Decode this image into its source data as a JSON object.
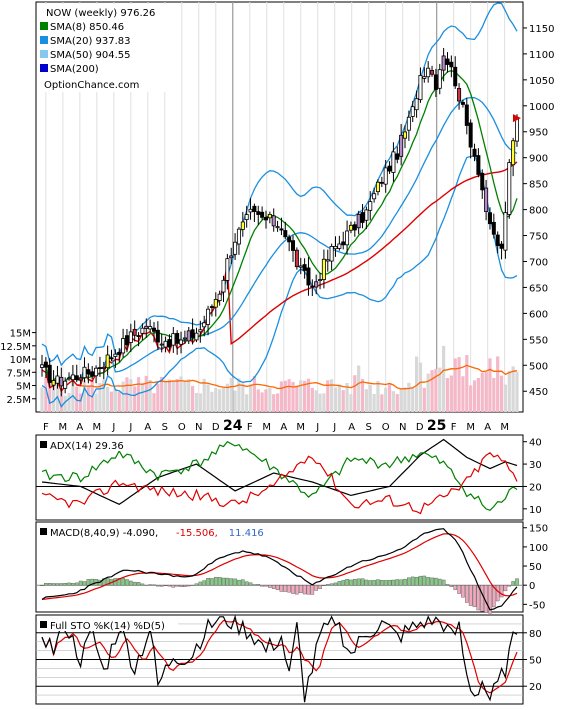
{
  "chart_data": [
    {
      "type": "candlestick",
      "title": "NOW (weekly) 976.26",
      "source_label": "OptionChance.com",
      "legend": [
        {
          "label": "SMA(8) 850.46",
          "color": "#008000"
        },
        {
          "label": "SMA(20) 937.83",
          "color": "#1a8fe0"
        },
        {
          "label": "SMA(50) 904.55",
          "color": "#87c8f0"
        },
        {
          "label": "SMA(200)",
          "color": "#0000cc"
        }
      ],
      "legend_placement": "top-left",
      "ylim": [
        410,
        1200
      ],
      "y_ticks": [
        450,
        500,
        550,
        600,
        650,
        700,
        750,
        800,
        850,
        900,
        950,
        1000,
        1050,
        1100,
        1150
      ],
      "x_tick_labels": [
        "F",
        "M",
        "A",
        "M",
        "J",
        "J",
        "A",
        "S",
        "O",
        "N",
        "D",
        "24",
        "F",
        "M",
        "A",
        "M",
        "J",
        "J",
        "A",
        "S",
        "O",
        "N",
        "D",
        "25",
        "F",
        "M",
        "A",
        "M"
      ],
      "year_markers": [
        "24",
        "25"
      ],
      "last_price": 976.26,
      "price_anchors": {
        "weeks": [
          0,
          4,
          8,
          13,
          18,
          23,
          27,
          31,
          36,
          41,
          46,
          48,
          50,
          54,
          58,
          62,
          67,
          70,
          75,
          80,
          84,
          88,
          92,
          96,
          98,
          100,
          102,
          104,
          107,
          110,
          113,
          116,
          119,
          121,
          123
        ],
        "closes": [
          490,
          468,
          478,
          488,
          520,
          555,
          575,
          550,
          545,
          570,
          645,
          700,
          745,
          790,
          780,
          770,
          680,
          650,
          720,
          760,
          795,
          860,
          910,
          990,
          1060,
          1080,
          1045,
          1105,
          1050,
          960,
          880,
          760,
          720,
          880,
          976
        ]
      },
      "volume": {
        "y_ticks": [
          "15M",
          "12.5M",
          "10M",
          "7.5M",
          "5M",
          "2.5M"
        ],
        "y_tick_values": [
          15,
          12.5,
          10,
          7.5,
          5,
          2.5
        ],
        "ylim": [
          0,
          17
        ],
        "avg_line_color": "#ff6600"
      }
    },
    {
      "type": "line",
      "title": "ADX(14) 29.36",
      "ylim": [
        5,
        43
      ],
      "y_ticks": [
        10,
        20,
        30,
        40
      ],
      "reference_line": 20,
      "series": [
        {
          "color": "#000000",
          "anchors_w": [
            0,
            10,
            20,
            30,
            40,
            50,
            60,
            70,
            80,
            90,
            98,
            104,
            110,
            116,
            120,
            123
          ],
          "anchors_v": [
            22,
            20,
            12,
            24,
            30,
            18,
            26,
            22,
            16,
            20,
            34,
            41,
            33,
            28,
            31,
            29.36
          ]
        },
        {
          "color": "#008000",
          "anchors_w": [
            0,
            10,
            20,
            30,
            40,
            50,
            60,
            70,
            80,
            90,
            98,
            104,
            110,
            116,
            120,
            123
          ],
          "anchors_v": [
            25,
            24,
            35,
            25,
            30,
            40,
            28,
            15,
            32,
            30,
            35,
            30,
            18,
            9,
            15,
            20
          ]
        },
        {
          "color": "#dd0000",
          "anchors_w": [
            0,
            10,
            20,
            30,
            40,
            50,
            60,
            70,
            80,
            90,
            98,
            104,
            110,
            116,
            120,
            123
          ],
          "anchors_v": [
            15,
            12,
            22,
            18,
            16,
            12,
            20,
            35,
            12,
            14,
            10,
            15,
            22,
            35,
            30,
            23
          ]
        }
      ]
    },
    {
      "type": "line",
      "title": "MACD(8,40,9) -4.090, -15.506, 11.416",
      "label_parts": [
        {
          "text": "MACD(8,40,9) -4.090,",
          "color": "#000000"
        },
        {
          "text": "-15.506,",
          "color": "#dd0000"
        },
        {
          "text": "11.416",
          "color": "#3366cc"
        }
      ],
      "ylim": [
        -70,
        165
      ],
      "y_ticks": [
        -50,
        0,
        50,
        100,
        150
      ],
      "series": [
        {
          "name": "MACD",
          "color": "#000000"
        },
        {
          "name": "Signal",
          "color": "#dd0000"
        }
      ],
      "macd_anchors": {
        "weeks": [
          0,
          8,
          15,
          22,
          30,
          38,
          46,
          52,
          58,
          64,
          70,
          76,
          82,
          88,
          94,
          100,
          104,
          108,
          112,
          116,
          119,
          123
        ],
        "values": [
          -35,
          -22,
          10,
          40,
          30,
          20,
          70,
          90,
          75,
          40,
          0,
          30,
          60,
          75,
          100,
          140,
          150,
          105,
          20,
          -65,
          -55,
          -4.09
        ]
      },
      "histogram_colors": {
        "positive": "#86c986",
        "negative": "#f0a8bc"
      }
    },
    {
      "type": "line",
      "title": "Full STO %K(14) %D(5)",
      "ylim": [
        0,
        100
      ],
      "y_ticks": [
        20,
        50,
        80
      ],
      "reference_lines": [
        20,
        50,
        80
      ],
      "series": [
        {
          "name": "%K",
          "color": "#000000"
        },
        {
          "name": "%D",
          "color": "#dd0000"
        }
      ],
      "k_anchors": {
        "weeks": [
          0,
          3,
          6,
          10,
          13,
          16,
          20,
          24,
          28,
          30,
          34,
          38,
          42,
          46,
          50,
          54,
          58,
          62,
          64,
          66,
          68,
          70,
          72,
          76,
          80,
          84,
          88,
          92,
          96,
          100,
          104,
          106,
          108,
          110,
          112,
          114,
          116,
          118,
          120,
          123
        ],
        "values": [
          80,
          60,
          90,
          50,
          80,
          35,
          88,
          40,
          85,
          20,
          55,
          50,
          80,
          98,
          90,
          80,
          60,
          75,
          30,
          85,
          10,
          40,
          75,
          95,
          55,
          80,
          90,
          75,
          85,
          95,
          90,
          75,
          85,
          30,
          10,
          25,
          5,
          20,
          40,
          85
        ]
      }
    }
  ]
}
